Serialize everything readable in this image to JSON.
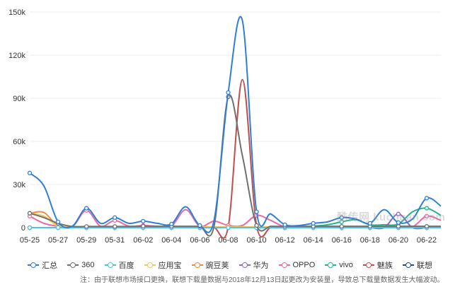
{
  "chart_data": {
    "type": "line",
    "y_ticks": [
      "150k",
      "120k",
      "90k",
      "60k",
      "30k",
      "0"
    ],
    "ylim": [
      0,
      150000
    ],
    "x_labels": [
      "05-25",
      "05-27",
      "05-29",
      "05-31",
      "06-02",
      "06-04",
      "06-06",
      "06-08",
      "06-10",
      "06-12",
      "06-14",
      "06-16",
      "06-18",
      "06-20",
      "06-22"
    ],
    "grid": true,
    "legend_position": "bottom",
    "series": [
      {
        "name": "汇总",
        "color": "#2f7ed8",
        "values": [
          38000,
          29000,
          4000,
          1000,
          13500,
          3000,
          7000,
          3000,
          4500,
          3000,
          2500,
          14500,
          1500,
          5000,
          94000,
          144000,
          11000,
          9500,
          2000,
          1500,
          3000,
          4000,
          7000,
          6000,
          3000,
          12500,
          3500,
          6000,
          20500,
          15000
        ]
      },
      {
        "name": "360",
        "color": "#707070",
        "values": [
          10000,
          7000,
          3000,
          800,
          800,
          800,
          800,
          800,
          1000,
          900,
          900,
          900,
          900,
          900,
          91000,
          50000,
          1500,
          900,
          900,
          900,
          900,
          900,
          900,
          900,
          900,
          900,
          900,
          900,
          900,
          900
        ]
      },
      {
        "name": "百度",
        "color": "#4fc1e9",
        "values": [
          0,
          0,
          0,
          0,
          0,
          0,
          0,
          0,
          0,
          0,
          0,
          0,
          0,
          0,
          0,
          0,
          0,
          0,
          0,
          0,
          0,
          0,
          0,
          0,
          0,
          0,
          0,
          0,
          0,
          0
        ]
      },
      {
        "name": "应用宝",
        "color": "#f7c55f",
        "values": [
          10000,
          8000,
          1000,
          500,
          500,
          500,
          500,
          500,
          500,
          500,
          500,
          500,
          500,
          500,
          500,
          500,
          500,
          500,
          500,
          500,
          500,
          500,
          500,
          500,
          500,
          500,
          500,
          500,
          500,
          500
        ]
      },
      {
        "name": "豌豆荚",
        "color": "#ef8b3c",
        "values": [
          10000,
          10500,
          1000,
          300,
          300,
          300,
          300,
          300,
          300,
          300,
          300,
          300,
          300,
          300,
          300,
          300,
          300,
          300,
          300,
          300,
          300,
          300,
          300,
          300,
          300,
          300,
          300,
          300,
          300,
          300
        ]
      },
      {
        "name": "华为",
        "color": "#8e6bbd",
        "values": [
          0,
          0,
          0,
          0,
          0,
          0,
          0,
          0,
          0,
          0,
          0,
          0,
          0,
          0,
          0,
          0,
          0,
          0,
          0,
          0,
          0,
          0,
          0,
          0,
          0,
          0,
          9500,
          0,
          0,
          0
        ]
      },
      {
        "name": "OPPO",
        "color": "#e86aa5",
        "values": [
          8000,
          3000,
          1000,
          500,
          12000,
          1000,
          5000,
          1000,
          1500,
          1000,
          1000,
          12500,
          1000,
          4500,
          1500,
          1500,
          8500,
          5000,
          500,
          500,
          500,
          500,
          500,
          500,
          500,
          500,
          500,
          500,
          8000,
          5000
        ]
      },
      {
        "name": "vivo",
        "color": "#2ab38f",
        "values": [
          0,
          0,
          0,
          0,
          0,
          0,
          0,
          0,
          0,
          0,
          0,
          0,
          0,
          0,
          0,
          0,
          0,
          0,
          0,
          0,
          1000,
          2000,
          4000,
          5500,
          2000,
          2000,
          2500,
          11000,
          13500,
          8500
        ]
      },
      {
        "name": "魅族",
        "color": "#c0504d",
        "values": [
          0,
          0,
          0,
          0,
          0,
          0,
          0,
          0,
          0,
          0,
          0,
          0,
          0,
          0,
          500,
          103000,
          1500,
          0,
          0,
          0,
          0,
          0,
          0,
          0,
          0,
          0,
          0,
          0,
          0,
          0
        ]
      },
      {
        "name": "联想",
        "color": "#1f4e8c",
        "values": [
          0,
          0,
          0,
          0,
          0,
          0,
          0,
          0,
          0,
          0,
          0,
          0,
          0,
          0,
          0,
          0,
          0,
          0,
          0,
          0,
          0,
          0,
          0,
          0,
          0,
          0,
          0,
          0,
          0,
          0
        ]
      }
    ],
    "note": "注：由于联想市场接口更换，联想下载量数据与2018年12月13日起更改为安装量，导致总下载量数据发生大幅波动。",
    "watermark": "酷传网 kuchuan.com"
  }
}
